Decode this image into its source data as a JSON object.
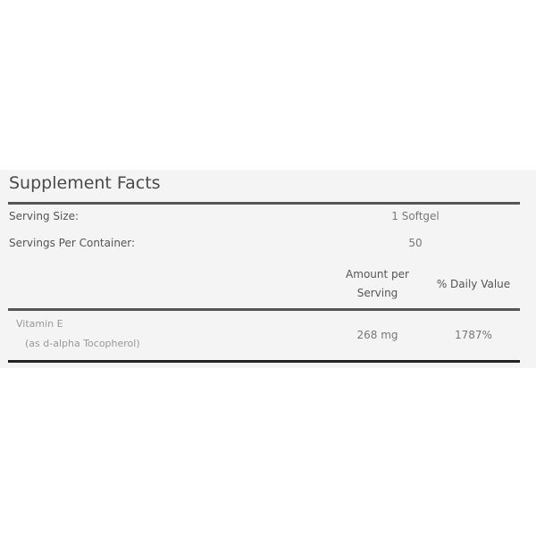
{
  "title": "Supplement Facts",
  "serving_size": {
    "label": "Serving Size:",
    "value": "1 Softgel"
  },
  "servings_per_container": {
    "label": "Servings Per Container:",
    "value": "50"
  },
  "columns": {
    "amount_line1": "Amount per",
    "amount_line2": "Serving",
    "daily_value": "% Daily Value"
  },
  "nutrients": [
    {
      "name": "Vitamin E",
      "detail": "(as d-alpha Tocopherol)",
      "amount": "268 mg",
      "daily_value": "1787%"
    }
  ]
}
